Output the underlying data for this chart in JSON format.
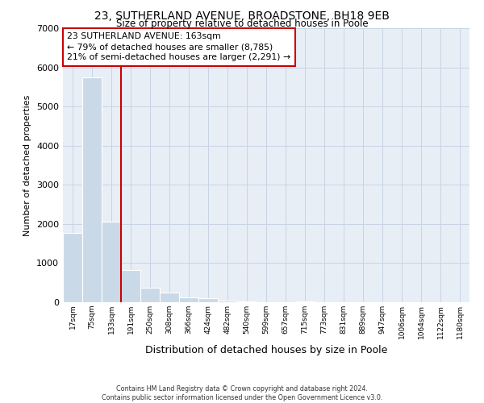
{
  "title_line1": "23, SUTHERLAND AVENUE, BROADSTONE, BH18 9EB",
  "title_line2": "Size of property relative to detached houses in Poole",
  "xlabel": "Distribution of detached houses by size in Poole",
  "ylabel": "Number of detached properties",
  "bar_labels": [
    "17sqm",
    "75sqm",
    "133sqm",
    "191sqm",
    "250sqm",
    "308sqm",
    "366sqm",
    "424sqm",
    "482sqm",
    "540sqm",
    "599sqm",
    "657sqm",
    "715sqm",
    "773sqm",
    "831sqm",
    "889sqm",
    "947sqm",
    "1006sqm",
    "1064sqm",
    "1122sqm",
    "1180sqm"
  ],
  "bar_values": [
    1780,
    5750,
    2050,
    830,
    380,
    250,
    130,
    100,
    50,
    30,
    0,
    0,
    20,
    0,
    0,
    0,
    0,
    0,
    0,
    0,
    0
  ],
  "bar_color": "#c9d9e8",
  "grid_color": "#c8d4e4",
  "bg_color": "#e8eef6",
  "annotation_text": "23 SUTHERLAND AVENUE: 163sqm\n← 79% of detached houses are smaller (8,785)\n21% of semi-detached houses are larger (2,291) →",
  "vline_color": "#cc0000",
  "annotation_box_color": "#cc0000",
  "ylim": [
    0,
    7000
  ],
  "yticks": [
    0,
    1000,
    2000,
    3000,
    4000,
    5000,
    6000,
    7000
  ],
  "footer_line1": "Contains HM Land Registry data © Crown copyright and database right 2024.",
  "footer_line2": "Contains public sector information licensed under the Open Government Licence v3.0."
}
